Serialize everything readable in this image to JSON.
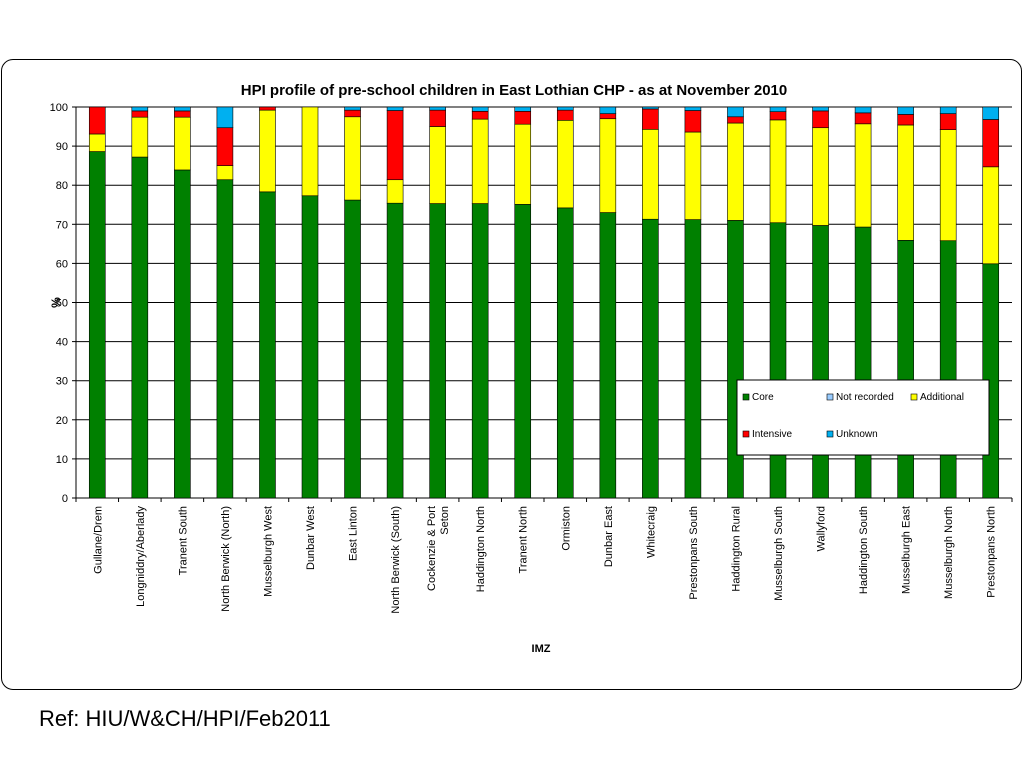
{
  "chart_data": {
    "type": "bar",
    "stacked": true,
    "title": "HPI profile of pre-school children in East Lothian CHP - as at November 2010",
    "xlabel": "IMZ",
    "ylabel": "%",
    "ylim": [
      0,
      100
    ],
    "yticks": [
      0,
      10,
      20,
      30,
      40,
      50,
      60,
      70,
      80,
      90,
      100
    ],
    "grid": true,
    "legend_position": "bottom-right",
    "categories": [
      "Gullane/Drem",
      "Longniddry/Aberlady",
      "Tranent South",
      "North Berwick (North)",
      "Musselburgh West",
      "Dunbar West",
      "East Linton",
      "North Berwick (South)",
      "Cockenzie & Port Seton",
      "Haddington North",
      "Tranent North",
      "Ormiston",
      "Dunbar East",
      "Whitecraig",
      "Prestonpans South",
      "Haddington Rural",
      "Musselburgh South",
      "Wallyford",
      "Haddington South",
      "Musselburgh East",
      "Musselburgh North",
      "Prestonpans North"
    ],
    "category_label_lines": [
      [
        "Gullane/Drem"
      ],
      [
        "Longniddry/Aberlady"
      ],
      [
        "Tranent South"
      ],
      [
        "North Berwick (North)"
      ],
      [
        "Musselburgh West"
      ],
      [
        "Dunbar West"
      ],
      [
        "East Linton"
      ],
      [
        "North Berwick (South)"
      ],
      [
        "Cockenzie & Port",
        "Seton"
      ],
      [
        "Haddington North"
      ],
      [
        "Tranent North"
      ],
      [
        "Ormiston"
      ],
      [
        "Dunbar East"
      ],
      [
        "Whitecraig"
      ],
      [
        "Prestonpans South"
      ],
      [
        "Haddington Rural"
      ],
      [
        "Musselburgh South"
      ],
      [
        "Wallyford"
      ],
      [
        "Haddington South"
      ],
      [
        "Musselburgh East"
      ],
      [
        "Musselburgh North"
      ],
      [
        "Prestonpans North"
      ]
    ],
    "series": [
      {
        "name": "Core",
        "color": "#008000",
        "values": [
          88.6,
          87.2,
          83.9,
          81.4,
          78.3,
          77.3,
          76.2,
          75.4,
          75.3,
          75.3,
          75.1,
          74.2,
          73.0,
          71.3,
          71.2,
          71.0,
          70.4,
          69.7,
          69.3,
          65.9,
          65.8,
          59.9
        ]
      },
      {
        "name": "Not recorded",
        "color": "#99CCFF",
        "values": [
          0,
          0,
          0,
          0,
          0,
          0,
          0,
          0,
          0,
          0,
          0,
          0,
          0,
          0,
          0,
          0,
          0,
          0,
          0,
          0,
          0,
          0
        ]
      },
      {
        "name": "Additional",
        "color": "#FFFF00",
        "values": [
          4.5,
          10.2,
          13.5,
          3.6,
          20.9,
          22.7,
          21.3,
          6.0,
          19.7,
          21.6,
          20.5,
          22.4,
          24.0,
          23.0,
          22.4,
          24.9,
          26.3,
          25.0,
          26.4,
          29.5,
          28.4,
          24.8
        ]
      },
      {
        "name": "Intensive",
        "color": "#FF0000",
        "values": [
          6.9,
          1.6,
          1.6,
          9.7,
          0.8,
          0,
          1.7,
          17.7,
          4.2,
          2.0,
          3.3,
          2.6,
          1.3,
          5.2,
          5.5,
          1.6,
          2.1,
          4.3,
          2.8,
          2.7,
          4.1,
          12.1
        ]
      },
      {
        "name": "Unknown",
        "color": "#00B0F0",
        "values": [
          0,
          1.0,
          1.0,
          5.3,
          0,
          0,
          0.8,
          0.9,
          0.8,
          1.1,
          1.1,
          0.8,
          1.7,
          0.5,
          0.9,
          2.5,
          1.2,
          1.0,
          1.5,
          1.9,
          1.7,
          3.2
        ]
      }
    ]
  },
  "footer": {
    "ref_text": "Ref: HIU/W&CH/HPI/Feb2011"
  }
}
